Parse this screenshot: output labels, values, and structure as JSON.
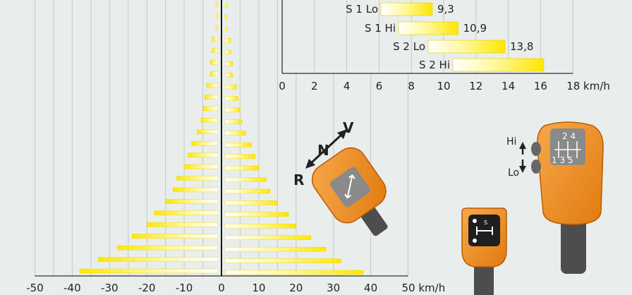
{
  "chart_data": [
    {
      "type": "bar",
      "orientation": "horizontal-diverging",
      "title": "",
      "xlabel": "km/h",
      "xlim": [
        -50,
        50
      ],
      "x_ticks": [
        "-50",
        "-40",
        "-30",
        "-20",
        "-10",
        "0",
        "10",
        "20",
        "30",
        "40",
        "50 km/h"
      ],
      "grid": true,
      "bars_left": [
        -1.5,
        -1.5,
        -1.5,
        -2.5,
        -2.5,
        -3,
        -3,
        -4,
        -4.5,
        -5,
        -5.5,
        -6.5,
        -8,
        -9,
        -10,
        -12,
        -13,
        -15,
        -18,
        -20,
        -24,
        -28,
        -33,
        -38
      ],
      "bars_right": [
        1.5,
        1.5,
        1.5,
        2.5,
        2.5,
        3,
        3,
        4,
        4.5,
        5,
        5.5,
        6.5,
        8,
        9,
        10,
        12,
        13,
        15,
        18,
        20,
        24,
        28,
        32,
        38
      ]
    },
    {
      "type": "bar",
      "orientation": "horizontal",
      "title": "",
      "xlabel": "km/h",
      "xlim": [
        0,
        18
      ],
      "x_ticks": [
        "0",
        "2",
        "4",
        "6",
        "8",
        "10",
        "12",
        "14",
        "16",
        "18 km/h"
      ],
      "categories": [
        "S 1 Lo",
        "S 1 Hi",
        "S 2 Lo",
        "S 2 Hi"
      ],
      "values": [
        9.3,
        10.9,
        13.8,
        16.2
      ],
      "value_labels": [
        "9,3",
        "10,9",
        "13,8",
        ""
      ]
    }
  ],
  "controls": {
    "shuttle_directions": {
      "forward": "V",
      "neutral": "N",
      "reverse": "R"
    },
    "shift_labels": {
      "hi": "Hi",
      "lo": "Lo"
    },
    "gate_top": "2  4",
    "gate_bottom": "1  3  5",
    "small_lever_s": "S"
  },
  "colors": {
    "background": "#e9eeec",
    "grid": "#c8cec9",
    "bar_yellow": "#ffe600",
    "bar_white": "#ffffff",
    "lever_orange": "#f28c1c",
    "lever_dark": "#4d4d4d",
    "axis": "#000000"
  }
}
